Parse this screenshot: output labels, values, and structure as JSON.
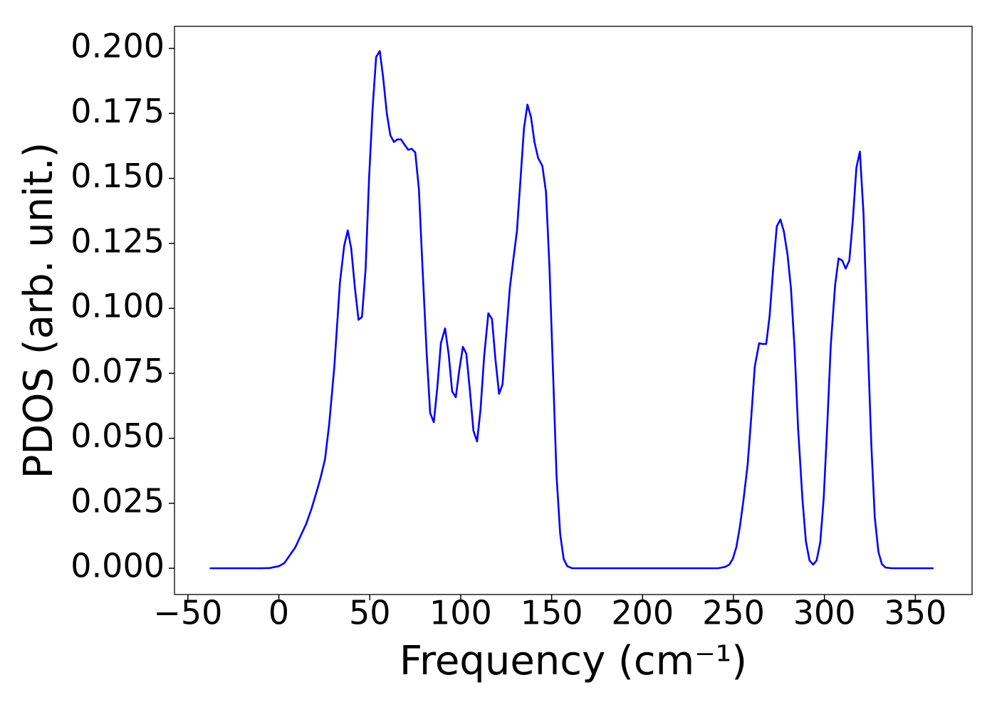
{
  "chart_data": {
    "type": "line",
    "x_label": "Frequency (cm⁻¹)",
    "y_label": "PDOS (arb. unit.)",
    "xlim": [
      -57.4,
      381.2
    ],
    "ylim": [
      -0.0101,
      0.2085
    ],
    "xticks": [
      {
        "value": -50,
        "label": "−50"
      },
      0,
      50,
      100,
      150,
      200,
      250,
      300,
      350
    ],
    "yticks": [
      {
        "value": 0,
        "label": "0.000"
      },
      {
        "value": 0.025,
        "label": "0.025"
      },
      {
        "value": 0.05,
        "label": "0.050"
      },
      {
        "value": 0.075,
        "label": "0.075"
      },
      {
        "value": 0.1,
        "label": "0.100"
      },
      {
        "value": 0.125,
        "label": "0.125"
      },
      {
        "value": 0.15,
        "label": "0.150"
      },
      {
        "value": 0.175,
        "label": "0.175"
      },
      {
        "value": 0.2,
        "label": "0.200"
      }
    ],
    "grid": false,
    "x": [
      -38,
      -20,
      -10,
      -5,
      0,
      3,
      6,
      9,
      12,
      15,
      18,
      21,
      23,
      25.4,
      27.7,
      30.5,
      33.6,
      35.9,
      37.9,
      39.8,
      41.8,
      43.8,
      45.7,
      47.7,
      49.6,
      51.6,
      53.5,
      55.5,
      57.4,
      59.4,
      61.3,
      63.3,
      65.2,
      67.2,
      69.1,
      71.1,
      73.0,
      75.0,
      77.0,
      78.9,
      81.3,
      83.2,
      85.2,
      87.1,
      89.1,
      91.4,
      93.4,
      95.3,
      97.3,
      99.2,
      101.2,
      103.1,
      105.1,
      107.0,
      109.0,
      110.9,
      112.9,
      115.2,
      117.2,
      119.1,
      121.1,
      123.0,
      125.0,
      127.0,
      128.9,
      130.9,
      132.8,
      134.8,
      136.7,
      138.7,
      140.6,
      142.6,
      144.9,
      146.9,
      148.8,
      150.8,
      152.7,
      154.7,
      156.6,
      158.6,
      161.3,
      241.4,
      245.3,
      247.7,
      249.6,
      251.6,
      253.5,
      255.5,
      257.8,
      259.8,
      261.7,
      264.1,
      266.0,
      268.0,
      269.9,
      271.9,
      273.8,
      275.8,
      277.7,
      279.7,
      281.6,
      283.6,
      285.5,
      287.9,
      289.8,
      291.8,
      293.8,
      295.7,
      297.7,
      299.6,
      301.6,
      303.5,
      305.9,
      307.8,
      309.8,
      311.7,
      313.7,
      315.6,
      317.6,
      319.5,
      321.5,
      323.4,
      325.8,
      327.7,
      329.7,
      331.6,
      333.6,
      337,
      360
    ],
    "series": [
      {
        "color": "#0000ff",
        "values": [
          0,
          0,
          0,
          0.0001,
          0.0008,
          0.002,
          0.005,
          0.008,
          0.0125,
          0.017,
          0.023,
          0.03,
          0.035,
          0.042,
          0.0556,
          0.0775,
          0.11,
          0.124,
          0.13,
          0.123,
          0.108,
          0.0956,
          0.0967,
          0.115,
          0.15,
          0.1775,
          0.1967,
          0.199,
          0.1885,
          0.1748,
          0.1666,
          0.164,
          0.165,
          0.165,
          0.163,
          0.161,
          0.1614,
          0.16,
          0.146,
          0.117,
          0.0825,
          0.0597,
          0.0562,
          0.0693,
          0.0866,
          0.0923,
          0.0822,
          0.068,
          0.0658,
          0.0762,
          0.0852,
          0.0825,
          0.068,
          0.0529,
          0.0488,
          0.0611,
          0.0816,
          0.0981,
          0.0959,
          0.0803,
          0.0671,
          0.0707,
          0.0899,
          0.1077,
          0.1186,
          0.1296,
          0.1488,
          0.1693,
          0.1784,
          0.1734,
          0.1638,
          0.1578,
          0.1548,
          0.1447,
          0.1159,
          0.0748,
          0.0356,
          0.0132,
          0.0036,
          0.0008,
          0,
          0,
          0.0005,
          0.0014,
          0.0036,
          0.0082,
          0.0159,
          0.0263,
          0.04,
          0.0584,
          0.0775,
          0.0866,
          0.0863,
          0.0863,
          0.0973,
          0.1159,
          0.1315,
          0.1342,
          0.1296,
          0.1208,
          0.1077,
          0.0844,
          0.0542,
          0.0268,
          0.0104,
          0.003,
          0.0014,
          0.003,
          0.0099,
          0.0268,
          0.0556,
          0.0858,
          0.109,
          0.1192,
          0.1184,
          0.1153,
          0.1184,
          0.1337,
          0.1542,
          0.1603,
          0.1364,
          0.0953,
          0.0474,
          0.0195,
          0.0063,
          0.0016,
          0.0003,
          0,
          0
        ]
      }
    ]
  }
}
